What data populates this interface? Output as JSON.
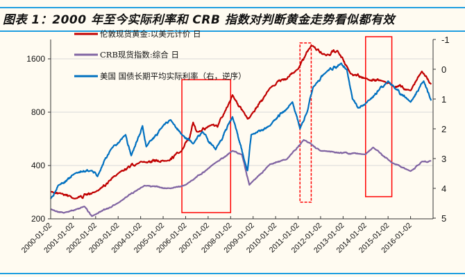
{
  "title": "图表 1：2000 年至今实际利率和 CRB 指数对判断黄金走势看似都有效",
  "colors": {
    "rule": "#1e9ee0",
    "highlight_box": "#ff0000",
    "background": "#fffbf1"
  },
  "chart_data": {
    "type": "line",
    "xlabel": "",
    "ylabel_left": "",
    "ylabel_right": "",
    "y_left": {
      "scale": "log",
      "lim": [
        200,
        1900
      ],
      "ticks": [
        "200",
        "400",
        "800",
        "1600"
      ]
    },
    "y_right": {
      "scale": "linear",
      "reversed": true,
      "lim": [
        -1,
        5
      ],
      "ticks": [
        "-1",
        "0",
        "1",
        "2",
        "3",
        "4",
        "5"
      ]
    },
    "x_range": [
      "2000-01",
      "2017-01"
    ],
    "x_ticks": [
      "2000-01-02",
      "2001-01-02",
      "2002-01-02",
      "2003-01-02",
      "2004-01-02",
      "2005-01-02",
      "2006-01-02",
      "2007-01-02",
      "2008-01-02",
      "2009-01-02",
      "2010-01-02",
      "2011-01-02",
      "2012-01-02",
      "2013-01-02",
      "2014-01-02",
      "2015-01-02",
      "2016-01-02"
    ],
    "grid": "horizontal",
    "legend": "top-left",
    "series": [
      {
        "name": "伦敦现货黄金:以美元计价 日",
        "axis": "left",
        "color": "#c00000",
        "points": [
          [
            "2000-01",
            284
          ],
          [
            "2000-06",
            280
          ],
          [
            "2001-02",
            260
          ],
          [
            "2002-01",
            284
          ],
          [
            "2003-01",
            361
          ],
          [
            "2004-01",
            421
          ],
          [
            "2005-03",
            425
          ],
          [
            "2005-10",
            475
          ],
          [
            "2006-03",
            566
          ],
          [
            "2006-05",
            700
          ],
          [
            "2006-07",
            620
          ],
          [
            "2007-03",
            680
          ],
          [
            "2007-06",
            660
          ],
          [
            "2007-10",
            810
          ],
          [
            "2008-02",
            1000
          ],
          [
            "2008-09",
            765
          ],
          [
            "2008-11",
            742
          ],
          [
            "2009-10",
            1095
          ],
          [
            "2011-01",
            1400
          ],
          [
            "2011-08",
            1900
          ],
          [
            "2012-04",
            1670
          ],
          [
            "2012-10",
            1780
          ],
          [
            "2013-05",
            1320
          ],
          [
            "2014-01",
            1240
          ],
          [
            "2014-10",
            1200
          ],
          [
            "2016-01",
            1060
          ],
          [
            "2016-07",
            1360
          ],
          [
            "2016-12",
            1150
          ]
        ]
      },
      {
        "name": "CRB现货指数:综合 日",
        "axis": "left",
        "color": "#8064a2",
        "points": [
          [
            "2000-01",
            227
          ],
          [
            "2000-08",
            216
          ],
          [
            "2001-07",
            235
          ],
          [
            "2001-11",
            207
          ],
          [
            "2003-01",
            246
          ],
          [
            "2004-03",
            308
          ],
          [
            "2005-05",
            297
          ],
          [
            "2006-01",
            311
          ],
          [
            "2007-05",
            415
          ],
          [
            "2008-02",
            484
          ],
          [
            "2008-07",
            462
          ],
          [
            "2008-11",
            311
          ],
          [
            "2009-10",
            407
          ],
          [
            "2010-07",
            434
          ],
          [
            "2011-04",
            558
          ],
          [
            "2012-01",
            484
          ],
          [
            "2014-01",
            462
          ],
          [
            "2014-05",
            506
          ],
          [
            "2015-03",
            415
          ],
          [
            "2016-01",
            372
          ],
          [
            "2016-07",
            421
          ],
          [
            "2016-12",
            425
          ]
        ]
      },
      {
        "name": "美国 国债长期平均实际利率（右，逆序）",
        "axis": "right",
        "color": "#0070c0",
        "points": [
          [
            "2000-01",
            4.35
          ],
          [
            "2000-05",
            3.9
          ],
          [
            "2001-02",
            3.5
          ],
          [
            "2001-11",
            3.4
          ],
          [
            "2002-02",
            3.6
          ],
          [
            "2002-09",
            2.7
          ],
          [
            "2003-05",
            2.2
          ],
          [
            "2003-08",
            2.9
          ],
          [
            "2004-02",
            1.9
          ],
          [
            "2004-04",
            2.6
          ],
          [
            "2005-01",
            1.9
          ],
          [
            "2005-05",
            1.7
          ],
          [
            "2005-11",
            2.2
          ],
          [
            "2006-05",
            2.5
          ],
          [
            "2006-10",
            2.1
          ],
          [
            "2007-05",
            2.7
          ],
          [
            "2008-02",
            1.6
          ],
          [
            "2008-09",
            3.2
          ],
          [
            "2008-10",
            3.4
          ],
          [
            "2008-12",
            2.2
          ],
          [
            "2009-10",
            1.9
          ],
          [
            "2010-10",
            1.1
          ],
          [
            "2011-02",
            2.0
          ],
          [
            "2011-06",
            1.4
          ],
          [
            "2011-09",
            0.6
          ],
          [
            "2012-04",
            0.1
          ],
          [
            "2012-12",
            -0.2
          ],
          [
            "2013-03",
            0.0
          ],
          [
            "2013-06",
            1.0
          ],
          [
            "2013-09",
            1.3
          ],
          [
            "2014-01",
            1.15
          ],
          [
            "2015-01",
            0.4
          ],
          [
            "2016-01",
            1.1
          ],
          [
            "2016-08",
            0.4
          ],
          [
            "2016-12",
            1.05
          ]
        ]
      }
    ],
    "highlight_periods": [
      {
        "from": "2005-11",
        "to": "2008-01",
        "style": "solid"
      },
      {
        "from": "2011-02",
        "to": "2011-08",
        "style": "dashed"
      },
      {
        "from": "2014-01",
        "to": "2015-03",
        "style": "solid"
      }
    ]
  }
}
